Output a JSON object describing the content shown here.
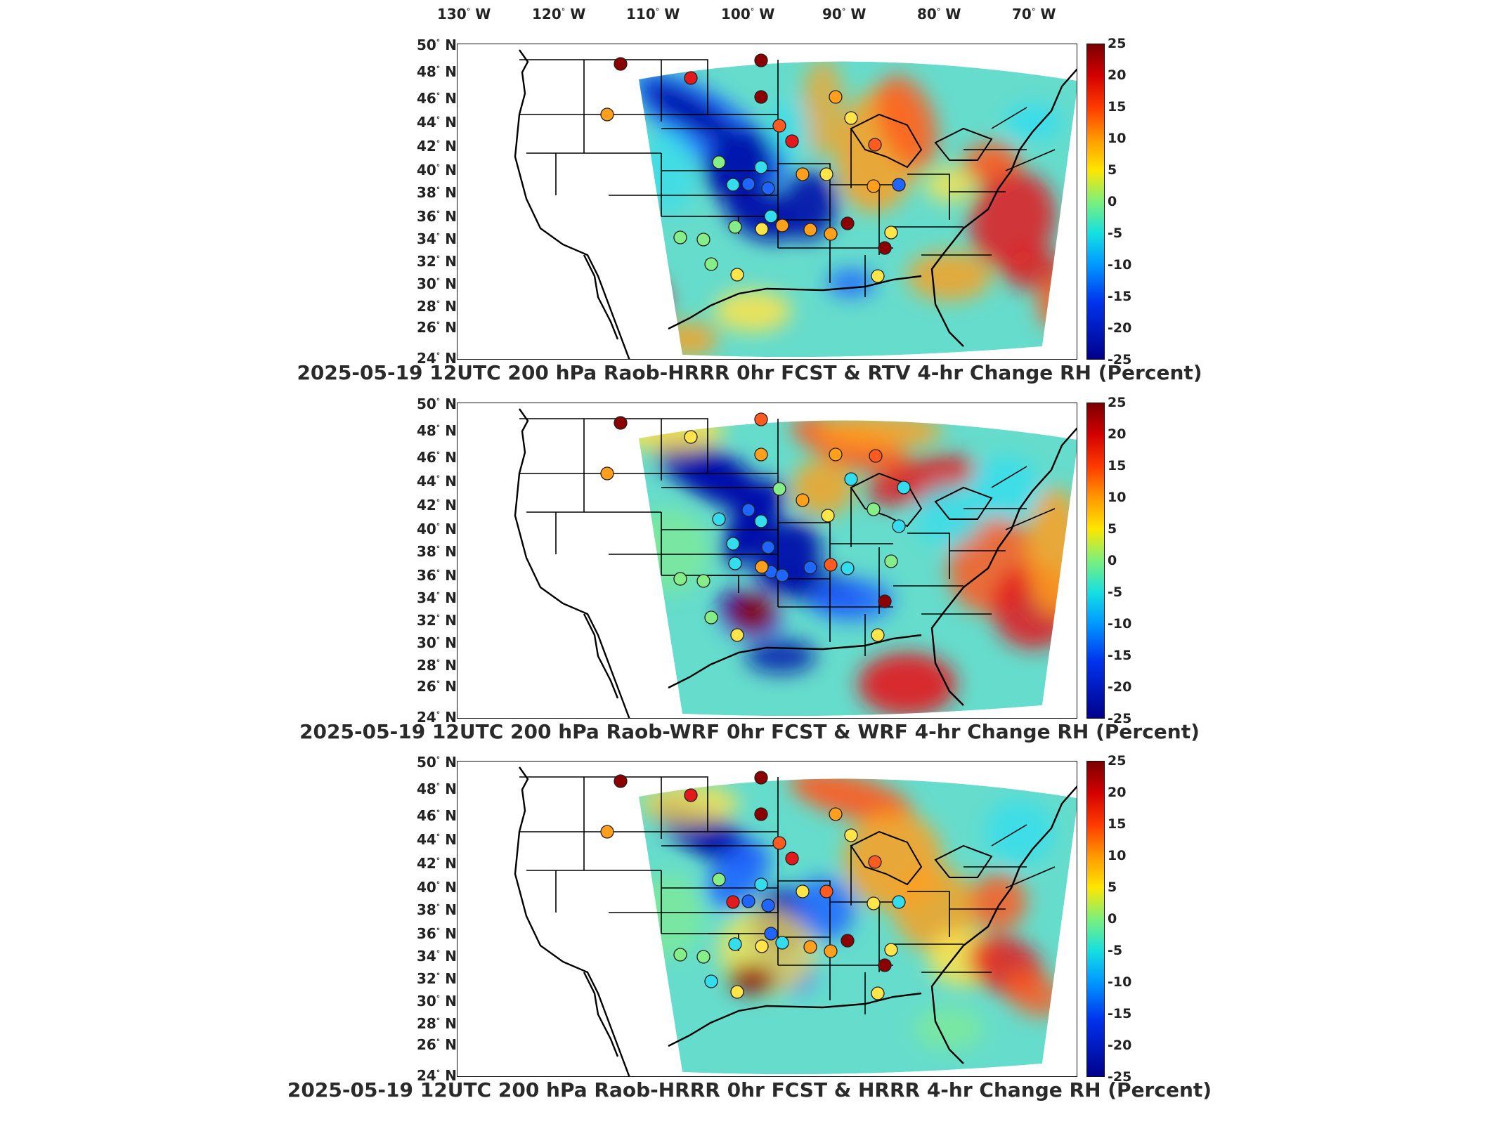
{
  "lon_labels": [
    "130",
    "120",
    "110",
    "100",
    "90",
    "80",
    "70"
  ],
  "lon_suffix": "W",
  "lat_labels": [
    "50",
    "48",
    "46",
    "44",
    "42",
    "40",
    "38",
    "36",
    "34",
    "32",
    "30",
    "28",
    "26",
    "24"
  ],
  "lat_suffix": "N",
  "colorbar_ticks": [
    "25",
    "20",
    "15",
    "10",
    "5",
    "0",
    "-5",
    "-10",
    "-15",
    "-20",
    "-25"
  ],
  "colors": {
    "dark_red": "#8b0000",
    "red": "#e31a1c",
    "orange_red": "#ff5a1f",
    "orange": "#ff9f1c",
    "yellow": "#ffe44a",
    "green": "#86ee86",
    "cyan": "#33ddee",
    "blue": "#1e66ff",
    "dark_blue": "#0010aa",
    "base": "#66dccc"
  },
  "panels": [
    {
      "title": "2025-05-19 12UTC 200 hPa Raob-HRRR 0hr FCST & RTV 4-hr Change RH (Percent)"
    },
    {
      "title": "2025-05-19 12UTC 200 hPa Raob-WRF 0hr FCST & WRF 4-hr Change RH (Percent)"
    },
    {
      "title": "2025-05-19 12UTC 200 hPa Raob-HRRR 0hr FCST & HRRR 4-hr Change RH (Percent)"
    }
  ]
}
